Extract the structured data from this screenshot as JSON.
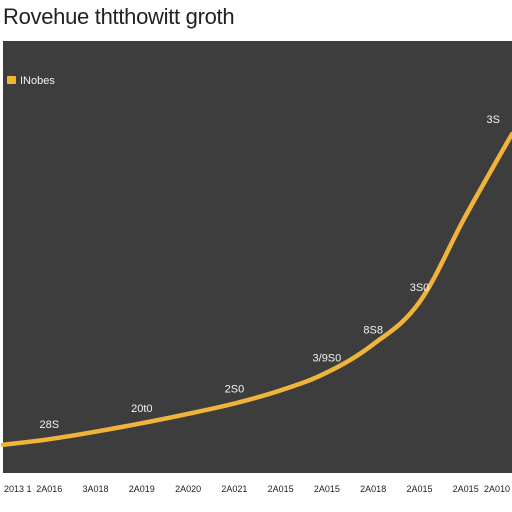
{
  "colors": {
    "plot_background": "#3d3d3d",
    "line": "#f1b43a",
    "data_label_text": "#f2f2f2",
    "tick_text": "#222222"
  },
  "chart_data": {
    "type": "line",
    "title": "Rovehue thtthowitt groth",
    "xlabel": "",
    "ylabel": "",
    "grid": false,
    "legend_position": "top-left",
    "categories": [
      "2013 1",
      "2A016",
      "3A018",
      "2A019",
      "2A020",
      "2A021",
      "2A015",
      "2A015",
      "2A018",
      "2A015",
      "2A015",
      "2A010"
    ],
    "series": [
      {
        "name": "INobes",
        "values": [
          30,
          36,
          44,
          53,
          63,
          74,
          88,
          107,
          137,
          182,
          274,
          361
        ]
      }
    ],
    "data_labels": [
      "28S",
      "20t0",
      "2S0",
      "3/9S0",
      "8S8",
      "3S0",
      "3S"
    ],
    "data_label_indices": [
      1,
      3,
      5,
      7,
      8,
      9,
      11
    ],
    "ylim": [
      0,
      460
    ]
  }
}
